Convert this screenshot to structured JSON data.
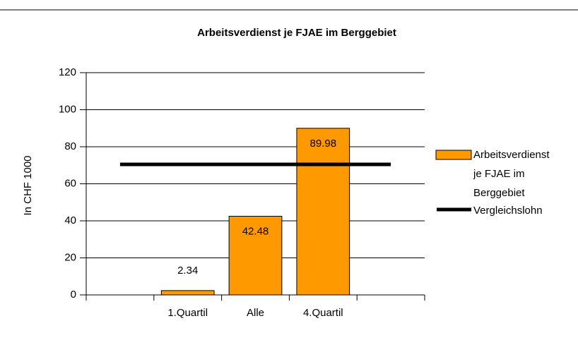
{
  "chart_data": {
    "type": "bar",
    "title": "Arbeitsverdienst je FJAE im Berggebiet",
    "y_label": "In CHF 1000",
    "categories": [
      null,
      "1.Quartil",
      "Alle",
      "4.Quartil",
      null
    ],
    "series": [
      {
        "name": "Arbeitsverdienst je FJAE im Berggebiet",
        "type": "bar",
        "color": "#ff9900",
        "values": [
          null,
          2.34,
          42.48,
          89.98,
          null
        ]
      },
      {
        "name": "Vergleichslohn",
        "type": "line",
        "color": "#000000",
        "values": [
          70.5,
          70.5,
          70.5,
          70.5,
          70.5
        ]
      }
    ],
    "ylim": [
      0,
      120
    ],
    "yticks": [
      0,
      20,
      40,
      60,
      80,
      100,
      120
    ],
    "grid": true,
    "legend": "right"
  }
}
